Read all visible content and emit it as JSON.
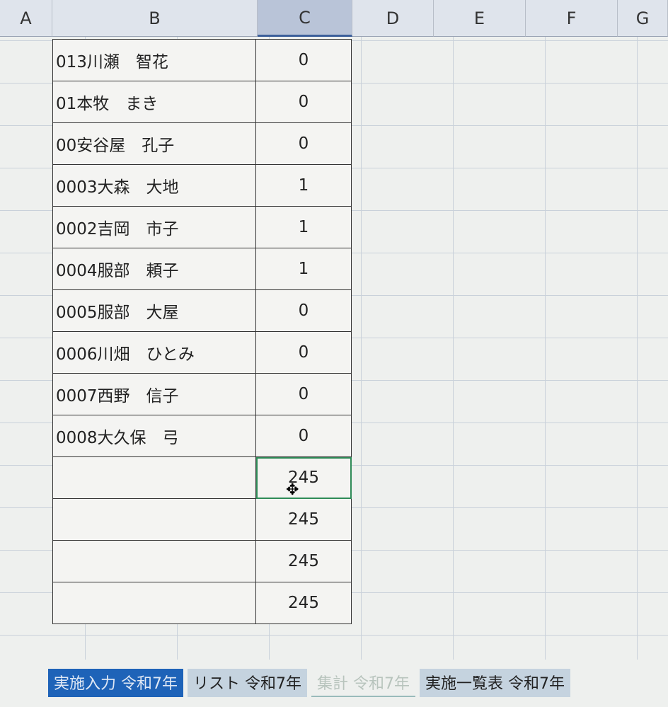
{
  "columns": [
    "A",
    "B",
    "C",
    "D",
    "E",
    "F",
    "G"
  ],
  "selected_column": "C",
  "rows": [
    {
      "b": "013川瀬　智花",
      "c": "0"
    },
    {
      "b": "01本牧　まき",
      "c": "0"
    },
    {
      "b": "00安谷屋　孔子",
      "c": "0"
    },
    {
      "b": "0003大森　大地",
      "c": "1"
    },
    {
      "b": "0002吉岡　市子",
      "c": "1"
    },
    {
      "b": "0004服部　頼子",
      "c": "1"
    },
    {
      "b": "0005服部　大屋",
      "c": "0"
    },
    {
      "b": "0006川畑　ひとみ",
      "c": "0"
    },
    {
      "b": "0007西野　信子",
      "c": "0"
    },
    {
      "b": "0008大久保　弓",
      "c": "0"
    },
    {
      "b": "",
      "c": "245"
    },
    {
      "b": "",
      "c": "245"
    },
    {
      "b": "",
      "c": "245"
    },
    {
      "b": "",
      "c": "245"
    }
  ],
  "sheet_tabs": [
    {
      "label": "実施入力 令和7年",
      "state": "active"
    },
    {
      "label": "リスト 令和7年",
      "state": "normal"
    },
    {
      "label": "集計 令和7年",
      "state": "faded"
    },
    {
      "label": "実施一覧表 令和7年",
      "state": "normal"
    }
  ]
}
